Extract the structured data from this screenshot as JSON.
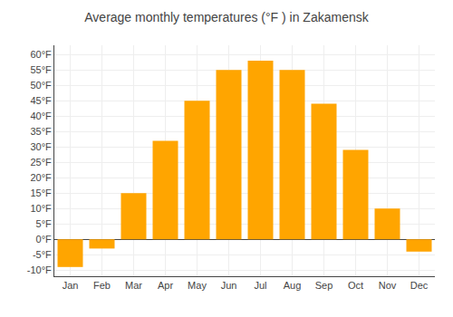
{
  "chart_data": {
    "type": "bar",
    "title": "Average monthly temperatures (°F ) in Zakamensk",
    "categories": [
      "Jan",
      "Feb",
      "Mar",
      "Apr",
      "May",
      "Jun",
      "Jul",
      "Aug",
      "Sep",
      "Oct",
      "Nov",
      "Dec"
    ],
    "values": [
      -9,
      -3,
      15,
      32,
      45,
      55,
      58,
      55,
      44,
      29,
      10,
      -4
    ],
    "color": "#FFA500",
    "ylim": [
      -12,
      63
    ],
    "yticks": [
      {
        "value": -10,
        "label": "-10°F"
      },
      {
        "value": -5,
        "label": "-5°F"
      },
      {
        "value": 0,
        "label": "0°F"
      },
      {
        "value": 5,
        "label": "5°F"
      },
      {
        "value": 10,
        "label": "10°F"
      },
      {
        "value": 15,
        "label": "15°F"
      },
      {
        "value": 20,
        "label": "20°F"
      },
      {
        "value": 25,
        "label": "25°F"
      },
      {
        "value": 30,
        "label": "30°F"
      },
      {
        "value": 35,
        "label": "35°F"
      },
      {
        "value": 40,
        "label": "40°F"
      },
      {
        "value": 45,
        "label": "45°F"
      },
      {
        "value": 50,
        "label": "50°F"
      },
      {
        "value": 55,
        "label": "55°F"
      },
      {
        "value": 60,
        "label": "60°F"
      }
    ],
    "grid": true
  }
}
